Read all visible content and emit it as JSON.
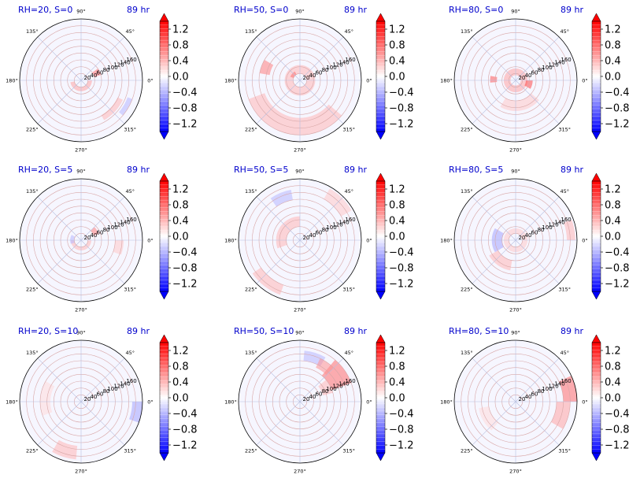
{
  "chart_data": {
    "type": "polar-contour-grid",
    "rows": 3,
    "cols": 3,
    "theta_labels": [
      "0°",
      "45°",
      "90°",
      "135°",
      "180°",
      "225°",
      "270°",
      "315°"
    ],
    "theta_values_deg": [
      0,
      45,
      90,
      135,
      180,
      225,
      270,
      315
    ],
    "r_ticks": [
      20,
      40,
      60,
      80,
      100,
      120,
      140,
      160
    ],
    "r_tick_labels": [
      "20",
      "40",
      "60",
      "80",
      "100",
      "120",
      "140",
      "160"
    ],
    "r_max": 180,
    "radial_label_angle_deg": 22.5,
    "colorbar": {
      "cmap": "bwr",
      "min": -1.4,
      "max": 1.4,
      "extend": "both",
      "levels": 29,
      "ticks": [
        1.2,
        0.8,
        0.4,
        0.0,
        -0.4,
        -0.8,
        -1.2
      ],
      "tick_labels": [
        "1.2",
        "0.8",
        "0.4",
        "0.0",
        "−0.4",
        "−0.8",
        "−1.2"
      ]
    },
    "colors": {
      "positive": "#ff0000",
      "negative": "#0000ff",
      "zero": "#ffffff",
      "title": "#0000cc"
    },
    "panels": [
      {
        "title_left": "RH=20, S=0",
        "title_right": "89 hr",
        "features": [
          {
            "r": [
              20,
              32
            ],
            "theta": [
              190,
              360
            ],
            "value": 0.5
          },
          {
            "r": [
              40,
              60
            ],
            "theta": [
              15,
              35
            ],
            "value": 0.8
          },
          {
            "r": [
              118,
              135
            ],
            "theta": [
              300,
              335
            ],
            "value": 0.4
          },
          {
            "r": [
              145,
              160
            ],
            "theta": [
              320,
              340
            ],
            "value": -0.4
          }
        ]
      },
      {
        "title_left": "RH=50, S=0",
        "title_right": "89 hr",
        "features": [
          {
            "r": [
              20,
              45
            ],
            "theta": [
              0,
              360
            ],
            "value": 0.4
          },
          {
            "r": [
              90,
              120
            ],
            "theta": [
              150,
              170
            ],
            "value": 0.7
          },
          {
            "r": [
              110,
              160
            ],
            "theta": [
              200,
              320
            ],
            "value": 0.4
          },
          {
            "r": [
              20,
              30
            ],
            "theta": [
              120,
              160
            ],
            "value": 0.8
          }
        ]
      },
      {
        "title_left": "RH=80, S=0",
        "title_right": "89 hr",
        "features": [
          {
            "r": [
              15,
              35
            ],
            "theta": [
              0,
              360
            ],
            "value": 0.5
          },
          {
            "r": [
              30,
              50
            ],
            "theta": [
              330,
              360
            ],
            "value": 1.0
          },
          {
            "r": [
              55,
              75
            ],
            "theta": [
              170,
              185
            ],
            "value": 0.9
          },
          {
            "r": [
              60,
              90
            ],
            "theta": [
              240,
              320
            ],
            "value": 0.3
          }
        ]
      },
      {
        "title_left": "RH=20, S=5",
        "title_right": "89 hr",
        "features": [
          {
            "r": [
              20,
              30
            ],
            "theta": [
              180,
              360
            ],
            "value": 0.4
          },
          {
            "r": [
              40,
              55
            ],
            "theta": [
              20,
              45
            ],
            "value": 0.7
          },
          {
            "r": [
              20,
              32
            ],
            "theta": [
              150,
              200
            ],
            "value": -0.4
          },
          {
            "r": [
              100,
              125
            ],
            "theta": [
              340,
              360
            ],
            "value": 0.3
          }
        ]
      },
      {
        "title_left": "RH=50, S=5",
        "title_right": "89 hr",
        "features": [
          {
            "r": [
              40,
              70
            ],
            "theta": [
              90,
              200
            ],
            "value": 0.4
          },
          {
            "r": [
              120,
              150
            ],
            "theta": [
              100,
              125
            ],
            "value": -0.4
          },
          {
            "r": [
              140,
              170
            ],
            "theta": [
              215,
              250
            ],
            "value": 0.4
          },
          {
            "r": [
              140,
              175
            ],
            "theta": [
              30,
              60
            ],
            "value": 0.3
          }
        ]
      },
      {
        "title_left": "RH=80, S=5",
        "title_right": "89 hr",
        "features": [
          {
            "r": [
              40,
              70
            ],
            "theta": [
              150,
              210
            ],
            "value": -0.5
          },
          {
            "r": [
              60,
              90
            ],
            "theta": [
              210,
              260
            ],
            "value": 0.4
          },
          {
            "r": [
              20,
              35
            ],
            "theta": [
              0,
              360
            ],
            "value": 0.3
          },
          {
            "r": [
              150,
              175
            ],
            "theta": [
              0,
              20
            ],
            "value": 0.4
          }
        ]
      },
      {
        "title_left": "RH=20, S=10",
        "title_right": "89 hr",
        "features": [
          {
            "r": [
              150,
              180
            ],
            "theta": [
              340,
              360
            ],
            "value": -0.5
          },
          {
            "r": [
              130,
              170
            ],
            "theta": [
              240,
              265
            ],
            "value": 0.4
          },
          {
            "r": [
              90,
              120
            ],
            "theta": [
              150,
              200
            ],
            "value": 0.2
          }
        ]
      },
      {
        "title_left": "RH=50, S=10",
        "title_right": "89 hr",
        "features": [
          {
            "r": [
              100,
              160
            ],
            "theta": [
              20,
              50
            ],
            "value": 0.8
          },
          {
            "r": [
              70,
              100
            ],
            "theta": [
              15,
              40
            ],
            "value": 0.4
          },
          {
            "r": [
              120,
              150
            ],
            "theta": [
              60,
              85
            ],
            "value": -0.4
          },
          {
            "r": [
              110,
              140
            ],
            "theta": [
              45,
              65
            ],
            "value": 0.6
          }
        ]
      },
      {
        "title_left": "RH=80, S=10",
        "title_right": "89 hr",
        "features": [
          {
            "r": [
              140,
              180
            ],
            "theta": [
              0,
              25
            ],
            "value": 0.8
          },
          {
            "r": [
              120,
              160
            ],
            "theta": [
              330,
              360
            ],
            "value": 0.5
          },
          {
            "r": [
              80,
              110
            ],
            "theta": [
              190,
              230
            ],
            "value": 0.2
          }
        ]
      }
    ]
  }
}
